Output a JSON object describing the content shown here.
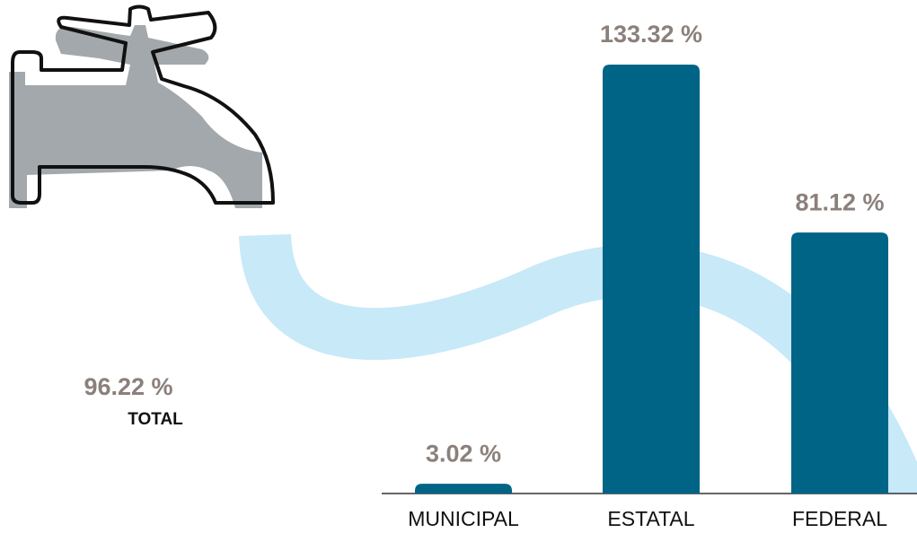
{
  "chart_data": {
    "type": "bar",
    "categories": [
      "MUNICIPAL",
      "ESTATAL",
      "FEDERAL"
    ],
    "values": [
      3.02,
      133.32,
      81.12
    ],
    "value_labels": [
      "3.02 %",
      "133.32 %",
      "81.12 %"
    ],
    "color": "#006487",
    "annotations": [
      {
        "text": "96.22 %"
      },
      {
        "text": "TOTAL"
      }
    ]
  }
}
